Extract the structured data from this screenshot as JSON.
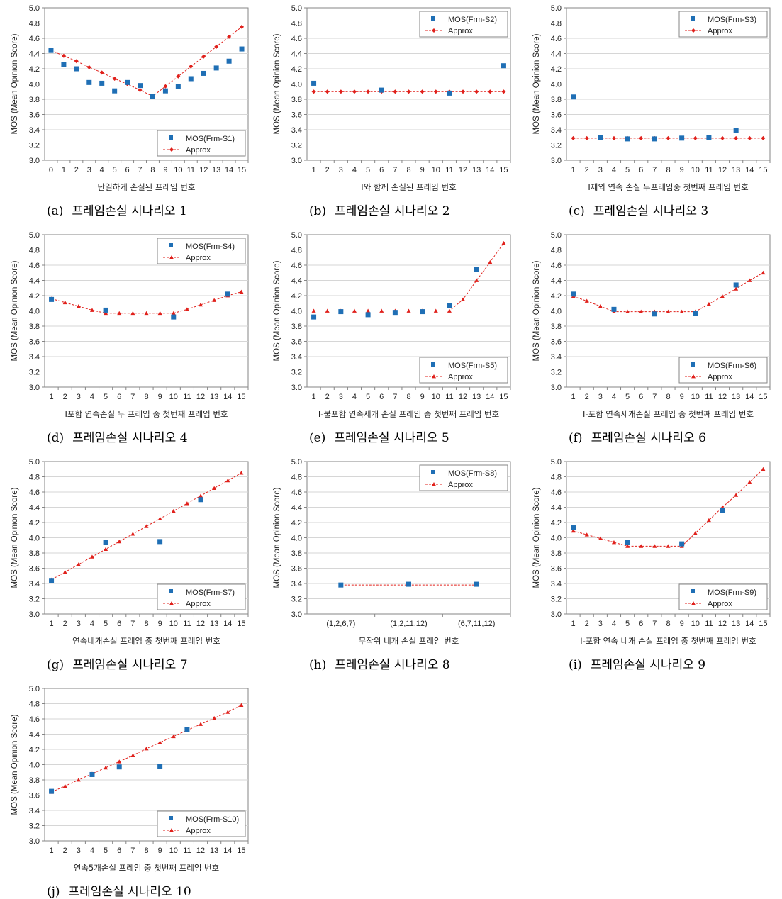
{
  "colors": {
    "mos": "#1F6FB5",
    "approx": "#E0201B",
    "grid": "#D6D6D6",
    "axis": "#868686"
  },
  "legend_labels": {
    "approx": "Approx"
  },
  "panels": [
    {
      "caption_letter": "(a)",
      "caption_text": "프레임손실 시나리오 1",
      "chart_data": {
        "type": "scatter",
        "x": [
          0,
          1,
          2,
          3,
          4,
          5,
          6,
          7,
          8,
          9,
          10,
          11,
          12,
          13,
          14,
          15
        ],
        "xticks": [
          "0",
          "1",
          "2",
          "3",
          "4",
          "5",
          "6",
          "7",
          "8",
          "9",
          "10",
          "11",
          "12",
          "13",
          "14",
          "15"
        ],
        "xlabel": "단일하게 손실된 프레임 번호",
        "ylabel": "MOS (Mean Opinion Score)",
        "ylim": [
          3.0,
          5.0
        ],
        "ystep": 0.2,
        "grid": true,
        "legend_position": "bottom-right",
        "approx_marker": "diamond",
        "series": [
          {
            "name": "MOS(Frm-S1)",
            "type": "scatter",
            "values": [
              4.44,
              4.26,
              4.2,
              4.02,
              4.01,
              3.91,
              4.02,
              3.98,
              3.84,
              3.91,
              3.97,
              4.07,
              4.14,
              4.21,
              4.3,
              4.46
            ]
          },
          {
            "name": "Approx",
            "type": "line",
            "values": [
              4.44,
              4.37,
              4.3,
              4.22,
              4.15,
              4.07,
              4.0,
              3.92,
              3.84,
              3.97,
              4.1,
              4.23,
              4.36,
              4.49,
              4.62,
              4.75
            ]
          }
        ]
      }
    },
    {
      "caption_letter": "(b)",
      "caption_text": "프레임손실 시나리오 2",
      "chart_data": {
        "type": "scatter",
        "x": [
          1,
          2,
          3,
          4,
          5,
          6,
          7,
          8,
          9,
          10,
          11,
          12,
          13,
          14,
          15
        ],
        "xticks": [
          "1",
          "2",
          "3",
          "4",
          "5",
          "6",
          "7",
          "8",
          "9",
          "10",
          "11",
          "12",
          "13",
          "14",
          "15"
        ],
        "xlabel": "I와 함께 손실된 프레임 번호",
        "ylabel": "MOS (Mean Opinion Score)",
        "ylim": [
          3.0,
          5.0
        ],
        "ystep": 0.2,
        "grid": true,
        "legend_position": "top-right",
        "approx_marker": "diamond",
        "series": [
          {
            "name": "MOS(Frm-S2)",
            "type": "scatter",
            "x": [
              1,
              6,
              11,
              15
            ],
            "values": [
              4.01,
              3.92,
              3.88,
              4.24
            ]
          },
          {
            "name": "Approx",
            "type": "line",
            "values": [
              3.9,
              3.9,
              3.9,
              3.9,
              3.9,
              3.9,
              3.9,
              3.9,
              3.9,
              3.9,
              3.9,
              3.9,
              3.9,
              3.9,
              3.9
            ]
          }
        ]
      }
    },
    {
      "caption_letter": "(c)",
      "caption_text": "프레임손실 시나리오 3",
      "chart_data": {
        "type": "scatter",
        "x": [
          1,
          2,
          3,
          4,
          5,
          6,
          7,
          8,
          9,
          10,
          11,
          12,
          13,
          14,
          15
        ],
        "xticks": [
          "1",
          "2",
          "3",
          "4",
          "5",
          "6",
          "7",
          "8",
          "9",
          "10",
          "11",
          "12",
          "13",
          "14",
          "15"
        ],
        "xlabel": "I제외 연속 손실 두프레임중 첫번째  프레임 번호",
        "ylabel": "MOS (Mean Opinion Score)",
        "ylim": [
          3.0,
          5.0
        ],
        "ystep": 0.2,
        "grid": true,
        "legend_position": "top-right",
        "approx_marker": "diamond",
        "series": [
          {
            "name": "MOS(Frm-S3)",
            "type": "scatter",
            "x": [
              1,
              3,
              5,
              7,
              9,
              11,
              13
            ],
            "values": [
              3.83,
              3.3,
              3.28,
              3.28,
              3.29,
              3.3,
              3.39
            ]
          },
          {
            "name": "Approx",
            "type": "line",
            "values": [
              3.29,
              3.29,
              3.29,
              3.29,
              3.29,
              3.29,
              3.29,
              3.29,
              3.29,
              3.29,
              3.29,
              3.29,
              3.29,
              3.29,
              3.29
            ]
          }
        ]
      }
    },
    {
      "caption_letter": "(d)",
      "caption_text": "프레임손실 시나리오 4",
      "chart_data": {
        "type": "scatter",
        "x": [
          1,
          2,
          3,
          4,
          5,
          6,
          7,
          8,
          9,
          10,
          11,
          12,
          13,
          14,
          15
        ],
        "xticks": [
          "1",
          "2",
          "3",
          "4",
          "5",
          "6",
          "7",
          "8",
          "9",
          "10",
          "11",
          "12",
          "13",
          "14",
          "15"
        ],
        "xlabel": "I포함 연속손실 두 프레임 중 첫번째 프레임 번호",
        "ylabel": "MOS (Mean Opinion Score)",
        "ylim": [
          3.0,
          5.0
        ],
        "ystep": 0.2,
        "grid": true,
        "legend_position": "top-right",
        "approx_marker": "triangle",
        "series": [
          {
            "name": "MOS(Frm-S4)",
            "type": "scatter",
            "x": [
              1,
              5,
              10,
              14
            ],
            "values": [
              4.15,
              4.01,
              3.92,
              4.22
            ]
          },
          {
            "name": "Approx",
            "type": "line",
            "values": [
              4.16,
              4.11,
              4.06,
              4.01,
              3.97,
              3.97,
              3.97,
              3.97,
              3.97,
              3.97,
              4.02,
              4.08,
              4.14,
              4.2,
              4.25
            ]
          }
        ]
      }
    },
    {
      "caption_letter": "(e)",
      "caption_text": "프레임손실 시나리오 5",
      "chart_data": {
        "type": "scatter",
        "x": [
          1,
          2,
          3,
          4,
          5,
          6,
          7,
          8,
          9,
          10,
          11,
          12,
          13,
          14,
          15
        ],
        "xticks": [
          "1",
          "2",
          "3",
          "4",
          "5",
          "6",
          "7",
          "8",
          "9",
          "10",
          "11",
          "12",
          "13",
          "14",
          "15"
        ],
        "xlabel": "I-불포함 연속세개 손실 프레임 중 첫번째 프레임 번호",
        "ylabel": "MOS (Mean Opinion Score)",
        "ylim": [
          3.0,
          5.0
        ],
        "ystep": 0.2,
        "grid": true,
        "legend_position": "bottom-right",
        "approx_marker": "triangle",
        "series": [
          {
            "name": "MOS(Frm-S5)",
            "type": "scatter",
            "x": [
              1,
              3,
              5,
              7,
              9,
              11,
              13
            ],
            "values": [
              3.92,
              3.99,
              3.95,
              3.98,
              3.99,
              4.07,
              4.54
            ]
          },
          {
            "name": "Approx",
            "type": "line",
            "values": [
              4.0,
              4.0,
              4.0,
              4.0,
              4.0,
              4.0,
              4.0,
              4.0,
              4.0,
              4.0,
              4.0,
              4.15,
              4.4,
              4.64,
              4.89
            ]
          }
        ]
      }
    },
    {
      "caption_letter": "(f)",
      "caption_text": "프레임손실 시나리오 6",
      "chart_data": {
        "type": "scatter",
        "x": [
          1,
          2,
          3,
          4,
          5,
          6,
          7,
          8,
          9,
          10,
          11,
          12,
          13,
          14,
          15
        ],
        "xticks": [
          "1",
          "2",
          "3",
          "4",
          "5",
          "6",
          "7",
          "8",
          "9",
          "10",
          "11",
          "12",
          "13",
          "14",
          "15"
        ],
        "xlabel": "I-포함 연속세개손실 프레임 중 첫번째 프레임 번호",
        "ylabel": "MOS (Mean Opinion Score)",
        "ylim": [
          3.0,
          5.0
        ],
        "ystep": 0.2,
        "grid": true,
        "legend_position": "bottom-right",
        "approx_marker": "triangle",
        "series": [
          {
            "name": "MOS(Frm-S6)",
            "type": "scatter",
            "x": [
              1,
              4,
              7,
              10,
              13
            ],
            "values": [
              4.22,
              4.02,
              3.96,
              3.97,
              4.34
            ]
          },
          {
            "name": "Approx",
            "type": "line",
            "values": [
              4.19,
              4.13,
              4.06,
              3.99,
              3.99,
              3.99,
              3.99,
              3.99,
              3.99,
              3.99,
              4.09,
              4.19,
              4.29,
              4.4,
              4.5
            ]
          }
        ]
      }
    },
    {
      "caption_letter": "(g)",
      "caption_text": "프레임손실 시나리오 7",
      "chart_data": {
        "type": "scatter",
        "x": [
          1,
          2,
          3,
          4,
          5,
          6,
          7,
          8,
          9,
          10,
          11,
          12,
          13,
          14,
          15
        ],
        "xticks": [
          "1",
          "2",
          "3",
          "4",
          "5",
          "6",
          "7",
          "8",
          "9",
          "10",
          "11",
          "12",
          "13",
          "14",
          "15"
        ],
        "xlabel": "연속네개손실 프레임 중 첫번째 프레임 번호",
        "ylabel": "MOS (Mean Opinion Score)",
        "ylim": [
          3.0,
          5.0
        ],
        "ystep": 0.2,
        "grid": true,
        "legend_position": "bottom-right",
        "approx_marker": "triangle",
        "series": [
          {
            "name": "MOS(Frm-S7)",
            "type": "scatter",
            "x": [
              1,
              5,
              9,
              12
            ],
            "values": [
              3.44,
              3.94,
              3.95,
              4.5
            ]
          },
          {
            "name": "Approx",
            "type": "line",
            "values": [
              3.45,
              3.55,
              3.65,
              3.75,
              3.85,
              3.95,
              4.05,
              4.15,
              4.25,
              4.35,
              4.45,
              4.55,
              4.65,
              4.75,
              4.85
            ]
          }
        ]
      }
    },
    {
      "caption_letter": "(h)",
      "caption_text": "프레임손실 시나리오 8",
      "chart_data": {
        "type": "scatter",
        "x": [
          1,
          2,
          3
        ],
        "xticks": [
          "(1,2,6,7)",
          "(1,2,11,12)",
          "(6,7,11,12)"
        ],
        "xlabel": "무작위 네개 손실 프레임 번호",
        "ylabel": "MOS (Mean Opinion Score)",
        "ylim": [
          3.0,
          5.0
        ],
        "ystep": 0.2,
        "grid": true,
        "legend_position": "top-right",
        "approx_marker": "triangle",
        "series": [
          {
            "name": "MOS(Frm-S8)",
            "type": "scatter",
            "values": [
              3.38,
              3.39,
              3.39
            ]
          },
          {
            "name": "Approx",
            "type": "line",
            "values": [
              3.38,
              3.38,
              3.38
            ]
          }
        ]
      }
    },
    {
      "caption_letter": "(i)",
      "caption_text": "프레임손실 시나리오 9",
      "chart_data": {
        "type": "scatter",
        "x": [
          1,
          2,
          3,
          4,
          5,
          6,
          7,
          8,
          9,
          10,
          11,
          12,
          13,
          14,
          15
        ],
        "xticks": [
          "1",
          "2",
          "3",
          "4",
          "5",
          "6",
          "7",
          "8",
          "9",
          "10",
          "11",
          "12",
          "13",
          "14",
          "15"
        ],
        "xlabel": "I-포함 연속 네개 손실 프레임 중 첫번째 프레임 번호",
        "ylabel": "MOS (Mean Opinion Score)",
        "ylim": [
          3.0,
          5.0
        ],
        "ystep": 0.2,
        "grid": true,
        "legend_position": "bottom-right",
        "approx_marker": "triangle",
        "series": [
          {
            "name": "MOS(Frm-S9)",
            "type": "scatter",
            "x": [
              1,
              5,
              9,
              12
            ],
            "values": [
              4.13,
              3.94,
              3.92,
              4.36
            ]
          },
          {
            "name": "Approx",
            "type": "line",
            "values": [
              4.09,
              4.04,
              3.99,
              3.94,
              3.89,
              3.89,
              3.89,
              3.89,
              3.89,
              4.06,
              4.23,
              4.4,
              4.56,
              4.73,
              4.9
            ]
          }
        ]
      }
    },
    {
      "caption_letter": "(j)",
      "caption_text": "프레임손실 시나리오 10",
      "chart_data": {
        "type": "scatter",
        "x": [
          1,
          2,
          3,
          4,
          5,
          6,
          7,
          8,
          9,
          10,
          11,
          12,
          13,
          14,
          15
        ],
        "xticks": [
          "1",
          "2",
          "3",
          "4",
          "5",
          "6",
          "7",
          "8",
          "9",
          "10",
          "11",
          "12",
          "13",
          "14",
          "15"
        ],
        "xlabel": "연속5개손실 프레임 중 첫번째 프레임 번호",
        "ylabel": "MOS (Mean Opinion Score)",
        "ylim": [
          3.0,
          5.0
        ],
        "ystep": 0.2,
        "grid": true,
        "legend_position": "bottom-right",
        "approx_marker": "triangle",
        "series": [
          {
            "name": "MOS(Frm-S10)",
            "type": "scatter",
            "x": [
              1,
              4,
              6,
              9,
              11
            ],
            "values": [
              3.65,
              3.87,
              3.97,
              3.98,
              4.46
            ]
          },
          {
            "name": "Approx",
            "type": "line",
            "values": [
              3.64,
              3.72,
              3.8,
              3.88,
              3.96,
              4.04,
              4.12,
              4.21,
              4.29,
              4.37,
              4.45,
              4.53,
              4.61,
              4.69,
              4.78
            ]
          }
        ]
      }
    }
  ]
}
